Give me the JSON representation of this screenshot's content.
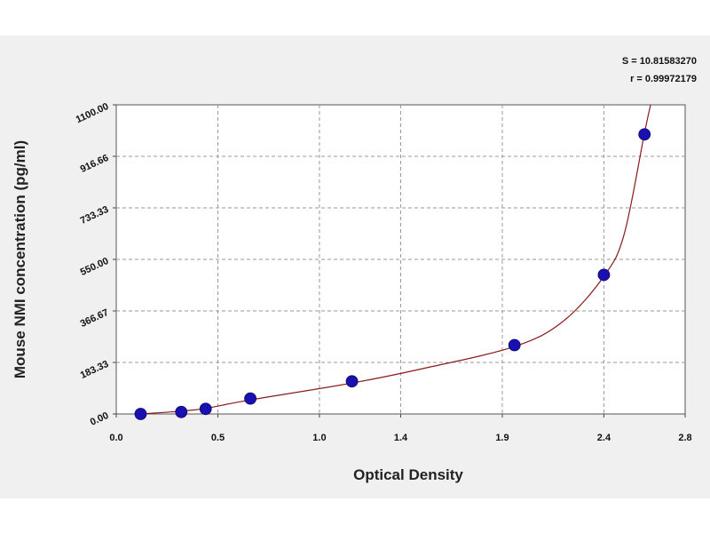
{
  "chart_data": {
    "type": "scatter",
    "xlabel": "Optical Density",
    "ylabel": "Mouse NMI concentration (pg/ml)",
    "xlim": [
      0.0,
      2.8
    ],
    "ylim": [
      0.0,
      1100.0
    ],
    "xticks": [
      "0.0",
      "0.5",
      "1.0",
      "1.4",
      "1.9",
      "2.4",
      "2.8"
    ],
    "yticks": [
      "0.00",
      "183.33",
      "366.67",
      "550.00",
      "733.33",
      "916.66",
      "1100.00"
    ],
    "grid": true,
    "stats": {
      "s_text": "S = 10.81583270",
      "r_text": "r = 0.99972179"
    },
    "series": [
      {
        "points": [
          {
            "x": 0.12,
            "y": 0
          },
          {
            "x": 0.32,
            "y": 7
          },
          {
            "x": 0.44,
            "y": 18
          },
          {
            "x": 0.66,
            "y": 55
          },
          {
            "x": 1.16,
            "y": 116
          },
          {
            "x": 1.96,
            "y": 245
          },
          {
            "x": 2.4,
            "y": 495
          },
          {
            "x": 2.6,
            "y": 995
          }
        ],
        "marker_color": "#1a10b0"
      }
    ],
    "fit_curve": {
      "color": "#8b1a1a",
      "points": [
        {
          "x": 0.12,
          "y": 0
        },
        {
          "x": 0.32,
          "y": 10
        },
        {
          "x": 0.44,
          "y": 20
        },
        {
          "x": 0.66,
          "y": 50
        },
        {
          "x": 1.16,
          "y": 110
        },
        {
          "x": 1.5,
          "y": 160
        },
        {
          "x": 1.96,
          "y": 240
        },
        {
          "x": 2.2,
          "y": 330
        },
        {
          "x": 2.4,
          "y": 490
        },
        {
          "x": 2.5,
          "y": 640
        },
        {
          "x": 2.6,
          "y": 1000
        },
        {
          "x": 2.63,
          "y": 1100
        }
      ]
    }
  }
}
